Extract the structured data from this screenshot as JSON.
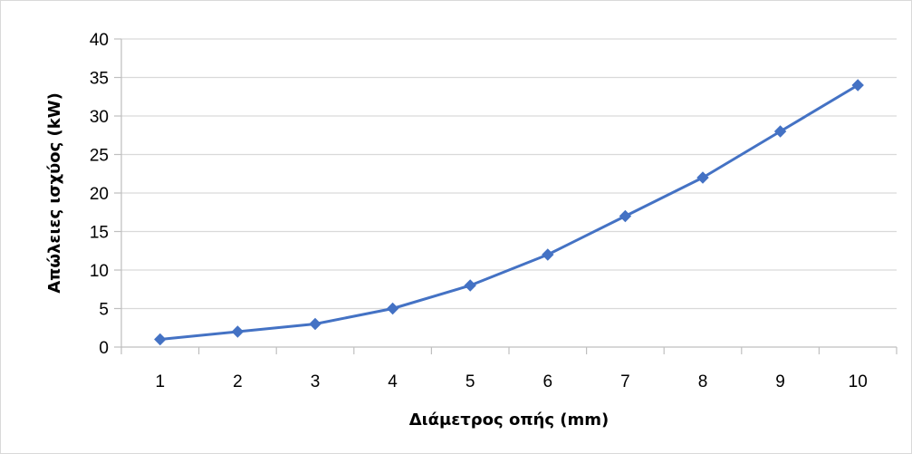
{
  "chart_data": {
    "type": "line",
    "title": "",
    "xlabel": "Διάμετρος οπής (mm)",
    "ylabel": "Απώλειες ισχύος (kW)",
    "x": [
      1,
      2,
      3,
      4,
      5,
      6,
      7,
      8,
      9,
      10
    ],
    "series": [
      {
        "values": [
          1,
          2,
          3,
          5,
          8,
          12,
          17,
          22,
          28,
          34
        ],
        "color": "#4472c4",
        "marker": "diamond"
      }
    ],
    "ylim": [
      0,
      40
    ],
    "yticks": [
      0,
      5,
      10,
      15,
      20,
      25,
      30,
      35,
      40
    ],
    "grid": "horizontal",
    "legend": "none"
  }
}
